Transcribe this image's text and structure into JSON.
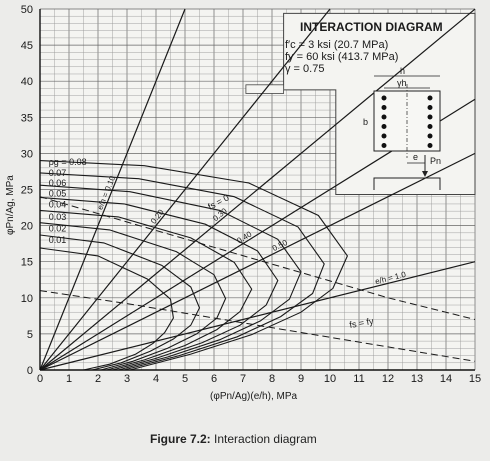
{
  "chart_data": {
    "type": "line",
    "title": "INTERACTION DIAGRAM",
    "parameters": [
      "f′c = 3 ksi (20.7 MPa)",
      "fy = 60 ksi (413.7 MPa)",
      "γ = 0.75"
    ],
    "xlabel": "(φPn/Ag)(e/h), MPa",
    "ylabel": "φPn/Ag, MPa",
    "xlim": [
      0,
      15
    ],
    "ylim": [
      0,
      50
    ],
    "xticks": [
      "0",
      "1",
      "2",
      "3",
      "4",
      "5",
      "6",
      "7",
      "8",
      "9",
      "10",
      "11",
      "12",
      "13",
      "14",
      "15"
    ],
    "yticks": [
      "0",
      "5",
      "10",
      "15",
      "20",
      "25",
      "30",
      "35",
      "40",
      "45",
      "50"
    ],
    "grid": true,
    "eccentricity_lines": [
      {
        "label": "e/h = 0.10",
        "slope": 10
      },
      {
        "label": "0.20",
        "slope": 5
      },
      {
        "label": "0.30",
        "slope": 3.333
      },
      {
        "label": "0.40",
        "slope": 2.5
      },
      {
        "label": "0.50",
        "slope": 2
      },
      {
        "label": "e/h = 1.0",
        "slope": 1
      }
    ],
    "steel_ratio_labels": [
      "ρg = 0.08",
      "0.07",
      "0.06",
      "0.05",
      "0.04",
      "0.03",
      "0.02",
      "0.01"
    ],
    "steel_ratio_curves": [
      {
        "name": "0.08",
        "points": [
          [
            0,
            29
          ],
          [
            3.6,
            28.3
          ],
          [
            7.2,
            25.9
          ],
          [
            9.6,
            21.4
          ],
          [
            10.6,
            15.8
          ],
          [
            10.1,
            11.3
          ],
          [
            9,
            8
          ],
          [
            7.3,
            4.9
          ],
          [
            5.2,
            2.2
          ],
          [
            3.1,
            0
          ]
        ]
      },
      {
        "name": "0.07",
        "points": [
          [
            0,
            27.3
          ],
          [
            3.4,
            26.5
          ],
          [
            6.7,
            24
          ],
          [
            8.9,
            19.8
          ],
          [
            9.8,
            14.7
          ],
          [
            9.4,
            10.6
          ],
          [
            8.3,
            7.4
          ],
          [
            6.8,
            4.6
          ],
          [
            4.8,
            2
          ],
          [
            2.9,
            0
          ]
        ]
      },
      {
        "name": "0.06",
        "points": [
          [
            0,
            25.6
          ],
          [
            3.1,
            24.7
          ],
          [
            6.2,
            22.1
          ],
          [
            8.2,
            18.1
          ],
          [
            9,
            13.6
          ],
          [
            8.6,
            9.8
          ],
          [
            7.6,
            6.8
          ],
          [
            6.2,
            4.2
          ],
          [
            4.4,
            1.8
          ],
          [
            2.7,
            0
          ]
        ]
      },
      {
        "name": "0.05",
        "points": [
          [
            0,
            23.9
          ],
          [
            2.9,
            23
          ],
          [
            5.7,
            20.2
          ],
          [
            7.5,
            16.5
          ],
          [
            8.2,
            12.4
          ],
          [
            7.8,
            9
          ],
          [
            6.9,
            6.2
          ],
          [
            5.6,
            3.8
          ],
          [
            4,
            1.6
          ],
          [
            2.5,
            0
          ]
        ]
      },
      {
        "name": "0.04",
        "points": [
          [
            0,
            22.1
          ],
          [
            2.7,
            21.2
          ],
          [
            5.2,
            18.3
          ],
          [
            6.7,
            14.9
          ],
          [
            7.3,
            11.2
          ],
          [
            6.9,
            8.1
          ],
          [
            6.1,
            5.6
          ],
          [
            5,
            3.4
          ],
          [
            3.6,
            1.4
          ],
          [
            2.3,
            0
          ]
        ]
      },
      {
        "name": "0.03",
        "points": [
          [
            0,
            20.4
          ],
          [
            2.4,
            19.4
          ],
          [
            4.7,
            16.4
          ],
          [
            6,
            13.2
          ],
          [
            6.4,
            9.9
          ],
          [
            6.1,
            7.2
          ],
          [
            5.4,
            5
          ],
          [
            4.4,
            3
          ],
          [
            3.2,
            1.2
          ],
          [
            2.1,
            0
          ]
        ]
      },
      {
        "name": "0.02",
        "points": [
          [
            0,
            18.7
          ],
          [
            2.2,
            17.6
          ],
          [
            4.2,
            14.5
          ],
          [
            5.2,
            11.5
          ],
          [
            5.5,
            8.6
          ],
          [
            5.2,
            6.2
          ],
          [
            4.6,
            4.3
          ],
          [
            3.8,
            2.6
          ],
          [
            2.8,
            1
          ],
          [
            1.8,
            0
          ]
        ]
      },
      {
        "name": "0.01",
        "points": [
          [
            0,
            16.9
          ],
          [
            2,
            15.8
          ],
          [
            3.7,
            12.6
          ],
          [
            4.5,
            9.8
          ],
          [
            4.6,
            7.2
          ],
          [
            4.3,
            5.2
          ],
          [
            3.9,
            3.7
          ],
          [
            3.3,
            2.2
          ],
          [
            2.4,
            0.8
          ],
          [
            1.5,
            0
          ]
        ]
      }
    ],
    "fs_lines": [
      {
        "label": "fs = 0",
        "points": [
          [
            0,
            24
          ],
          [
            3,
            20.5
          ],
          [
            6,
            17
          ],
          [
            9,
            13.5
          ],
          [
            12,
            10
          ],
          [
            15,
            7
          ]
        ]
      },
      {
        "label": "fs = fy",
        "points": [
          [
            0,
            11
          ],
          [
            3,
            9.2
          ],
          [
            6,
            7.2
          ],
          [
            9,
            5.2
          ],
          [
            12,
            3.2
          ],
          [
            15,
            1.2
          ]
        ]
      }
    ],
    "section_labels": [
      "h",
      "γh",
      "b",
      "e",
      "Pn"
    ],
    "caption_prefix": "Figure 7.2:",
    "caption_text": "Interaction diagram"
  }
}
